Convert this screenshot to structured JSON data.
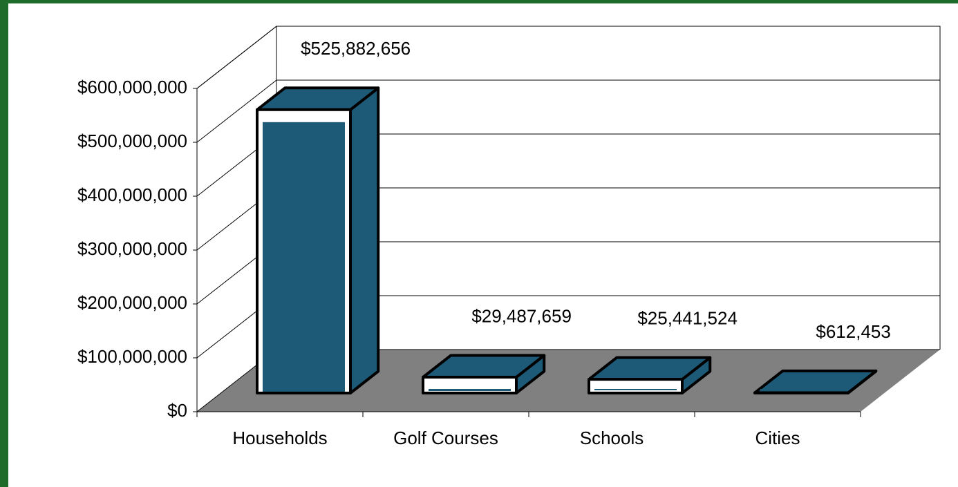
{
  "chart_data": {
    "type": "bar3d",
    "categories": [
      "Households",
      "Golf Courses",
      "Schools",
      "Cities"
    ],
    "values": [
      525882656,
      29487659,
      25441524,
      612453
    ],
    "value_labels": [
      "$525,882,656",
      "$29,487,659",
      "$25,441,524",
      "$612,453"
    ],
    "color": "#1c5a78",
    "ylim": [
      0,
      600000000
    ],
    "yticks": [
      {
        "value": 0,
        "label": "$0"
      },
      {
        "value": 100000000,
        "label": "$100,000,000"
      },
      {
        "value": 200000000,
        "label": "$200,000,000"
      },
      {
        "value": 300000000,
        "label": "$300,000,000"
      },
      {
        "value": 400000000,
        "label": "$400,000,000"
      },
      {
        "value": 500000000,
        "label": "$500,000,000"
      },
      {
        "value": 600000000,
        "label": "$600,000,000"
      }
    ],
    "grid": true
  }
}
